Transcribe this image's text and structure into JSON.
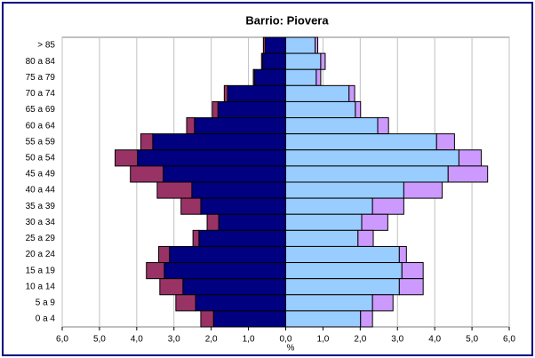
{
  "chart_data": {
    "type": "pyramid",
    "title": "Barrio: Piovera",
    "xlabel": "%",
    "categories": [
      "> 85",
      "80 a 84",
      "75 a 79",
      "70 a 74",
      "65 a 69",
      "60 a 64",
      "55 a 59",
      "50 a 54",
      "45 a 49",
      "40 a 44",
      "35 a 39",
      "30 a 34",
      "25 a 29",
      "20 a 24",
      "15 a 19",
      "10 a 14",
      "5 a 9",
      "0 a 4"
    ],
    "series": [
      {
        "color": "#000080",
        "values": [
          -0.55,
          -0.62,
          -0.84,
          -1.56,
          -1.82,
          -2.45,
          -3.57,
          -3.98,
          -3.29,
          -2.52,
          -2.28,
          -1.8,
          -2.33,
          -3.12,
          -3.26,
          -2.76,
          -2.42,
          -1.94
        ]
      },
      {
        "color": "#993366",
        "values": [
          -0.05,
          -0.03,
          -0.03,
          -0.09,
          -0.15,
          -0.21,
          -0.32,
          -0.6,
          -0.88,
          -0.93,
          -0.53,
          -0.31,
          -0.16,
          -0.29,
          -0.48,
          -0.62,
          -0.53,
          -0.34
        ]
      },
      {
        "color": "#99ccff",
        "values": [
          0.79,
          0.94,
          0.82,
          1.7,
          1.87,
          2.47,
          4.05,
          4.65,
          4.36,
          3.17,
          2.33,
          2.04,
          1.94,
          3.05,
          3.12,
          3.05,
          2.33,
          2.01
        ]
      },
      {
        "color": "#cc99ff",
        "values": [
          0.07,
          0.12,
          0.12,
          0.15,
          0.14,
          0.29,
          0.48,
          0.6,
          1.06,
          1.03,
          0.84,
          0.7,
          0.41,
          0.19,
          0.57,
          0.64,
          0.55,
          0.32
        ]
      }
    ],
    "xlim": [
      -6,
      6
    ],
    "xticks": [
      {
        "value": -6,
        "label": "6,0"
      },
      {
        "value": -5,
        "label": "5,0"
      },
      {
        "value": -4,
        "label": "4,0"
      },
      {
        "value": -3,
        "label": "3,0"
      },
      {
        "value": -2,
        "label": "2,0"
      },
      {
        "value": -1,
        "label": "1,0"
      },
      {
        "value": 0,
        "label": "0,0"
      },
      {
        "value": 1,
        "label": "1,0"
      },
      {
        "value": 2,
        "label": "2,0"
      },
      {
        "value": 3,
        "label": "3,0"
      },
      {
        "value": 4,
        "label": "4,0"
      },
      {
        "value": 5,
        "label": "5,0"
      },
      {
        "value": 6,
        "label": "6,0"
      }
    ],
    "grid": true
  }
}
